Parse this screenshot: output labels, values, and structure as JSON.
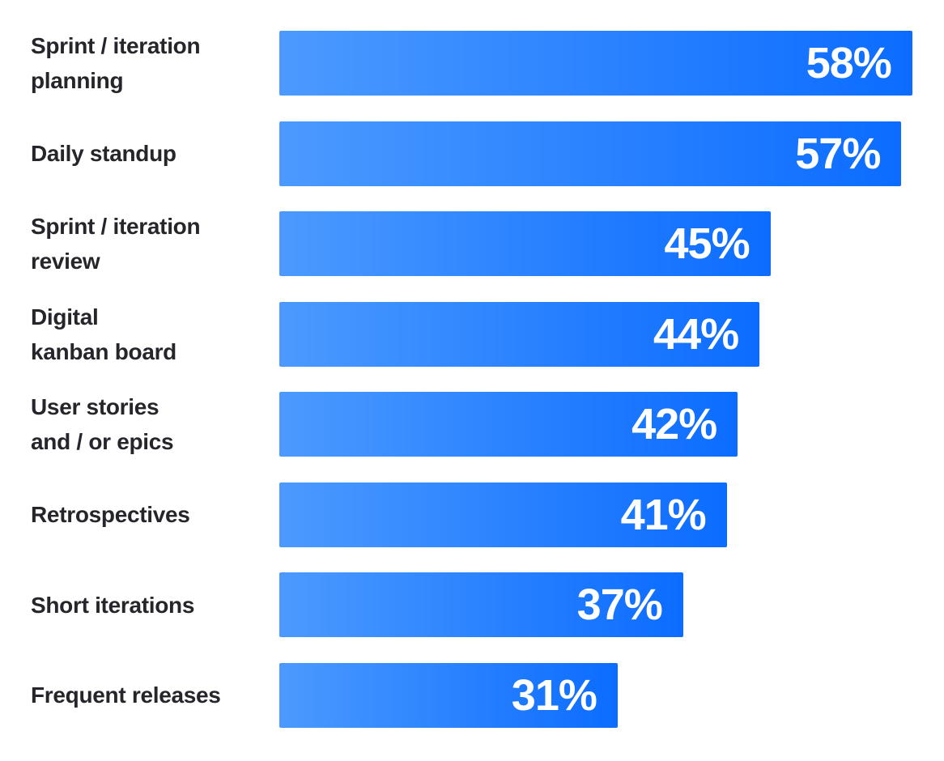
{
  "chart_data": {
    "type": "bar",
    "orientation": "horizontal",
    "title": "",
    "xlabel": "",
    "ylabel": "",
    "value_suffix": "%",
    "xlim": [
      0,
      58
    ],
    "grid": false,
    "legend": null,
    "categories": [
      "Sprint / iteration planning",
      "Daily standup",
      "Sprint / iteration review",
      "Digital kanban board",
      "User stories and / or epics",
      "Retrospectives",
      "Short iterations",
      "Frequent releases"
    ],
    "values": [
      58,
      57,
      45,
      44,
      42,
      41,
      37,
      31
    ],
    "rows": [
      {
        "label_lines": [
          "Sprint / iteration",
          "planning"
        ],
        "value": 58,
        "value_label": "58%"
      },
      {
        "label_lines": [
          "Daily standup"
        ],
        "value": 57,
        "value_label": "57%"
      },
      {
        "label_lines": [
          "Sprint / iteration",
          "review"
        ],
        "value": 45,
        "value_label": "45%"
      },
      {
        "label_lines": [
          "Digital",
          "kanban board"
        ],
        "value": 44,
        "value_label": "44%"
      },
      {
        "label_lines": [
          "User stories",
          "and / or epics"
        ],
        "value": 42,
        "value_label": "42%"
      },
      {
        "label_lines": [
          "Retrospectives"
        ],
        "value": 41,
        "value_label": "41%"
      },
      {
        "label_lines": [
          "Short iterations"
        ],
        "value": 37,
        "value_label": "37%"
      },
      {
        "label_lines": [
          "Frequent releases"
        ],
        "value": 31,
        "value_label": "31%"
      }
    ],
    "colors": {
      "bar_gradient_start": "#4C9AFF",
      "bar_gradient_end": "#0B6CFF",
      "category_label": "#26252B",
      "value_label": "#FFFFFF",
      "background": "#FFFFFF"
    }
  }
}
